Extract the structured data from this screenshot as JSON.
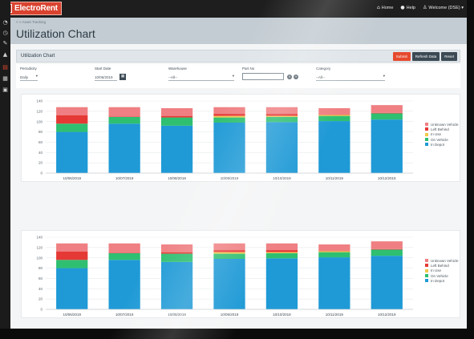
{
  "app": {
    "brand": "ElectroRent",
    "brand_mark": "R",
    "brand_color": "#d9432f",
    "nav": [
      {
        "icon": "home-icon",
        "glyph": "⌂",
        "label": "Home"
      },
      {
        "icon": "help-icon",
        "glyph": "●",
        "label": "Help"
      },
      {
        "icon": "user-icon",
        "glyph": "♙",
        "label": "Welcome (DSE) ▾"
      }
    ]
  },
  "sidebar": {
    "items": [
      {
        "icon": "dashboard-icon",
        "glyph": "◔",
        "active": false
      },
      {
        "icon": "clock-icon",
        "glyph": "◷",
        "active": false
      },
      {
        "icon": "pin-icon",
        "glyph": "✎",
        "active": false
      },
      {
        "icon": "alert-icon",
        "glyph": "▲",
        "active": false
      },
      {
        "icon": "chart-icon",
        "glyph": "▤",
        "active": true
      },
      {
        "icon": "grid-icon",
        "glyph": "▦",
        "active": false
      },
      {
        "icon": "report-icon",
        "glyph": "▣",
        "active": false
      }
    ]
  },
  "page": {
    "breadcrumb": "< > Asset Tracking",
    "title": "Utilization Chart"
  },
  "panel": {
    "title": "Utilization Chart",
    "buttons": {
      "submit": "Submit",
      "refresh": "Refresh Data",
      "reset": "Reset"
    }
  },
  "filters": {
    "periodicity": {
      "label": "Periodicity",
      "value": "Daily"
    },
    "start_date": {
      "label": "Start Date",
      "value": "10/06/2019"
    },
    "warehouse": {
      "label": "Warehouse",
      "value": "--All--"
    },
    "part_no": {
      "label": "Part No",
      "value": ""
    },
    "category": {
      "label": "Category",
      "value": "--All--"
    }
  },
  "chart_data": [
    {
      "type": "bar",
      "stacked": true,
      "categories": [
        "10/06/2019",
        "10/07/2019",
        "10/08/2019",
        "10/09/2019",
        "10/10/2019",
        "10/11/2019",
        "10/12/2019"
      ],
      "ylim": [
        0,
        140
      ],
      "yticks": [
        0,
        20,
        40,
        60,
        80,
        100,
        120,
        140
      ],
      "grid": true,
      "legend_position": "right",
      "series": [
        {
          "name": "In Depot",
          "color": "#1f9ad6",
          "values": [
            80,
            96,
            92,
            98,
            99,
            101,
            104
          ]
        },
        {
          "name": "On Vehicle",
          "color": "#2fbf71",
          "values": [
            16,
            13,
            16,
            10,
            10,
            10,
            12
          ]
        },
        {
          "name": "In Use",
          "color": "#f2c94c",
          "values": [
            0,
            0,
            0,
            3,
            2,
            2,
            0
          ]
        },
        {
          "name": "Left Behind",
          "color": "#e53935",
          "values": [
            16,
            1,
            3,
            4,
            4,
            1,
            1
          ]
        },
        {
          "name": "Unknown Vehicle",
          "color": "#ef7f82",
          "values": [
            16,
            18,
            15,
            13,
            13,
            12,
            15
          ]
        }
      ]
    },
    {
      "type": "bar",
      "stacked": true,
      "categories": [
        "10/06/2019",
        "10/07/2019",
        "10/08/2019",
        "10/09/2019",
        "10/10/2019",
        "10/11/2019",
        "10/12/2019"
      ],
      "ylim": [
        0,
        140
      ],
      "yticks": [
        0,
        20,
        40,
        60,
        80,
        100,
        120,
        140
      ],
      "grid": true,
      "legend_position": "right",
      "series": [
        {
          "name": "In Depot",
          "color": "#1f9ad6",
          "values": [
            80,
            96,
            92,
            98,
            99,
            101,
            104
          ]
        },
        {
          "name": "On Vehicle",
          "color": "#2fbf71",
          "values": [
            16,
            13,
            16,
            10,
            10,
            10,
            12
          ]
        },
        {
          "name": "In Use",
          "color": "#f2c94c",
          "values": [
            0,
            0,
            0,
            3,
            2,
            2,
            0
          ]
        },
        {
          "name": "Left Behind",
          "color": "#e53935",
          "values": [
            16,
            1,
            3,
            4,
            4,
            1,
            1
          ]
        },
        {
          "name": "Unknown Vehicle",
          "color": "#ef7f82",
          "values": [
            16,
            18,
            15,
            13,
            13,
            12,
            15
          ]
        }
      ]
    }
  ]
}
